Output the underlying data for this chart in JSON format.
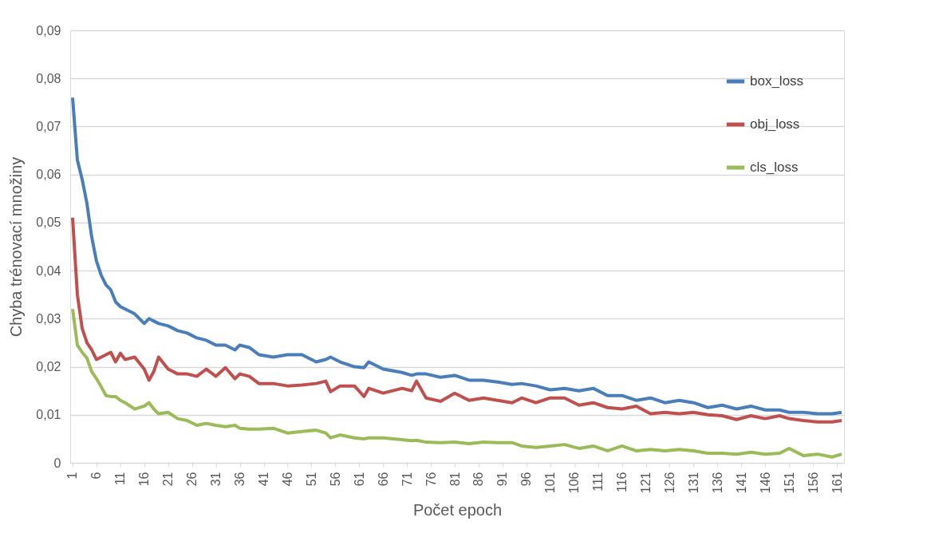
{
  "chart_data": {
    "type": "line",
    "xlabel": "Počet epoch",
    "ylabel": "Chyba trénovací množiny",
    "x": [
      1,
      2,
      3,
      4,
      5,
      6,
      7,
      8,
      9,
      10,
      11,
      12,
      14,
      16,
      17,
      18,
      19,
      21,
      23,
      25,
      27,
      29,
      31,
      33,
      35,
      36,
      38,
      40,
      43,
      46,
      49,
      52,
      54,
      55,
      57,
      60,
      62,
      63,
      66,
      70,
      72,
      73,
      75,
      78,
      81,
      84,
      87,
      90,
      93,
      95,
      98,
      101,
      104,
      107,
      110,
      113,
      116,
      119,
      122,
      125,
      128,
      131,
      134,
      137,
      140,
      143,
      146,
      149,
      151,
      154,
      157,
      160,
      162
    ],
    "series": [
      {
        "name": "box_loss",
        "color": "#4a7ebb",
        "values": [
          0.076,
          0.063,
          0.059,
          0.054,
          0.047,
          0.042,
          0.039,
          0.037,
          0.036,
          0.0335,
          0.0325,
          0.032,
          0.031,
          0.029,
          0.03,
          0.0295,
          0.029,
          0.0285,
          0.0275,
          0.027,
          0.026,
          0.0255,
          0.0245,
          0.0245,
          0.0235,
          0.0245,
          0.024,
          0.0225,
          0.022,
          0.0225,
          0.0225,
          0.021,
          0.0215,
          0.022,
          0.021,
          0.02,
          0.0198,
          0.021,
          0.0195,
          0.0188,
          0.0182,
          0.0185,
          0.0185,
          0.0178,
          0.0182,
          0.0172,
          0.0172,
          0.0168,
          0.0163,
          0.0165,
          0.016,
          0.0152,
          0.0155,
          0.015,
          0.0155,
          0.014,
          0.014,
          0.013,
          0.0135,
          0.0125,
          0.013,
          0.0125,
          0.0115,
          0.012,
          0.0112,
          0.0118,
          0.011,
          0.011,
          0.0105,
          0.0105,
          0.0102,
          0.0102,
          0.0105
        ]
      },
      {
        "name": "obj_loss",
        "color": "#c0504d",
        "values": [
          0.051,
          0.035,
          0.028,
          0.025,
          0.0235,
          0.0215,
          0.022,
          0.0225,
          0.023,
          0.021,
          0.0228,
          0.0215,
          0.022,
          0.0195,
          0.0172,
          0.019,
          0.022,
          0.0195,
          0.0185,
          0.0185,
          0.018,
          0.0195,
          0.018,
          0.0198,
          0.0175,
          0.0185,
          0.018,
          0.0165,
          0.0165,
          0.016,
          0.0162,
          0.0165,
          0.017,
          0.0148,
          0.016,
          0.016,
          0.0138,
          0.0155,
          0.0145,
          0.0155,
          0.015,
          0.017,
          0.0135,
          0.0128,
          0.0145,
          0.013,
          0.0135,
          0.013,
          0.0125,
          0.0135,
          0.0125,
          0.0135,
          0.0135,
          0.012,
          0.0125,
          0.0115,
          0.0112,
          0.0118,
          0.0102,
          0.0105,
          0.0102,
          0.0105,
          0.01,
          0.0098,
          0.009,
          0.0098,
          0.0092,
          0.0098,
          0.0092,
          0.0088,
          0.0085,
          0.0085,
          0.0088
        ]
      },
      {
        "name": "cls_loss",
        "color": "#9bbb59",
        "values": [
          0.032,
          0.0245,
          0.023,
          0.0218,
          0.019,
          0.0175,
          0.0158,
          0.014,
          0.0138,
          0.0138,
          0.013,
          0.0125,
          0.0112,
          0.0118,
          0.0125,
          0.0112,
          0.0102,
          0.0105,
          0.0092,
          0.0088,
          0.0078,
          0.0082,
          0.0078,
          0.0075,
          0.0078,
          0.0072,
          0.007,
          0.007,
          0.0072,
          0.0062,
          0.0065,
          0.0068,
          0.0062,
          0.0052,
          0.0058,
          0.0052,
          0.005,
          0.0052,
          0.0052,
          0.0048,
          0.0046,
          0.0047,
          0.0043,
          0.0042,
          0.0043,
          0.004,
          0.0043,
          0.0042,
          0.0042,
          0.0035,
          0.0032,
          0.0035,
          0.0038,
          0.003,
          0.0035,
          0.0025,
          0.0035,
          0.0025,
          0.0028,
          0.0025,
          0.0028,
          0.0025,
          0.002,
          0.002,
          0.0018,
          0.0022,
          0.0018,
          0.002,
          0.003,
          0.0015,
          0.0018,
          0.0012,
          0.0018
        ]
      }
    ],
    "xlim": [
      0.5,
      162.5
    ],
    "xticks": [
      1,
      6,
      11,
      16,
      21,
      26,
      31,
      36,
      41,
      46,
      51,
      56,
      61,
      66,
      71,
      76,
      81,
      86,
      91,
      96,
      101,
      106,
      111,
      116,
      121,
      126,
      131,
      136,
      141,
      146,
      151,
      156,
      161
    ],
    "ylim": [
      0,
      0.09
    ],
    "yticks": [
      0,
      {
        "value": 0.01,
        "label": "0,01"
      },
      {
        "value": 0.02,
        "label": "0,02"
      },
      {
        "value": 0.03,
        "label": "0,03"
      },
      {
        "value": 0.04,
        "label": "0,04"
      },
      {
        "value": 0.05,
        "label": "0,05"
      },
      {
        "value": 0.06,
        "label": "0,06"
      },
      {
        "value": 0.07,
        "label": "0,07"
      },
      {
        "value": 0.08,
        "label": "0,08"
      },
      {
        "value": 0.09,
        "label": "0,09"
      }
    ],
    "grid": "y",
    "legend": "top right",
    "marker": "none",
    "line_style": "solid"
  }
}
